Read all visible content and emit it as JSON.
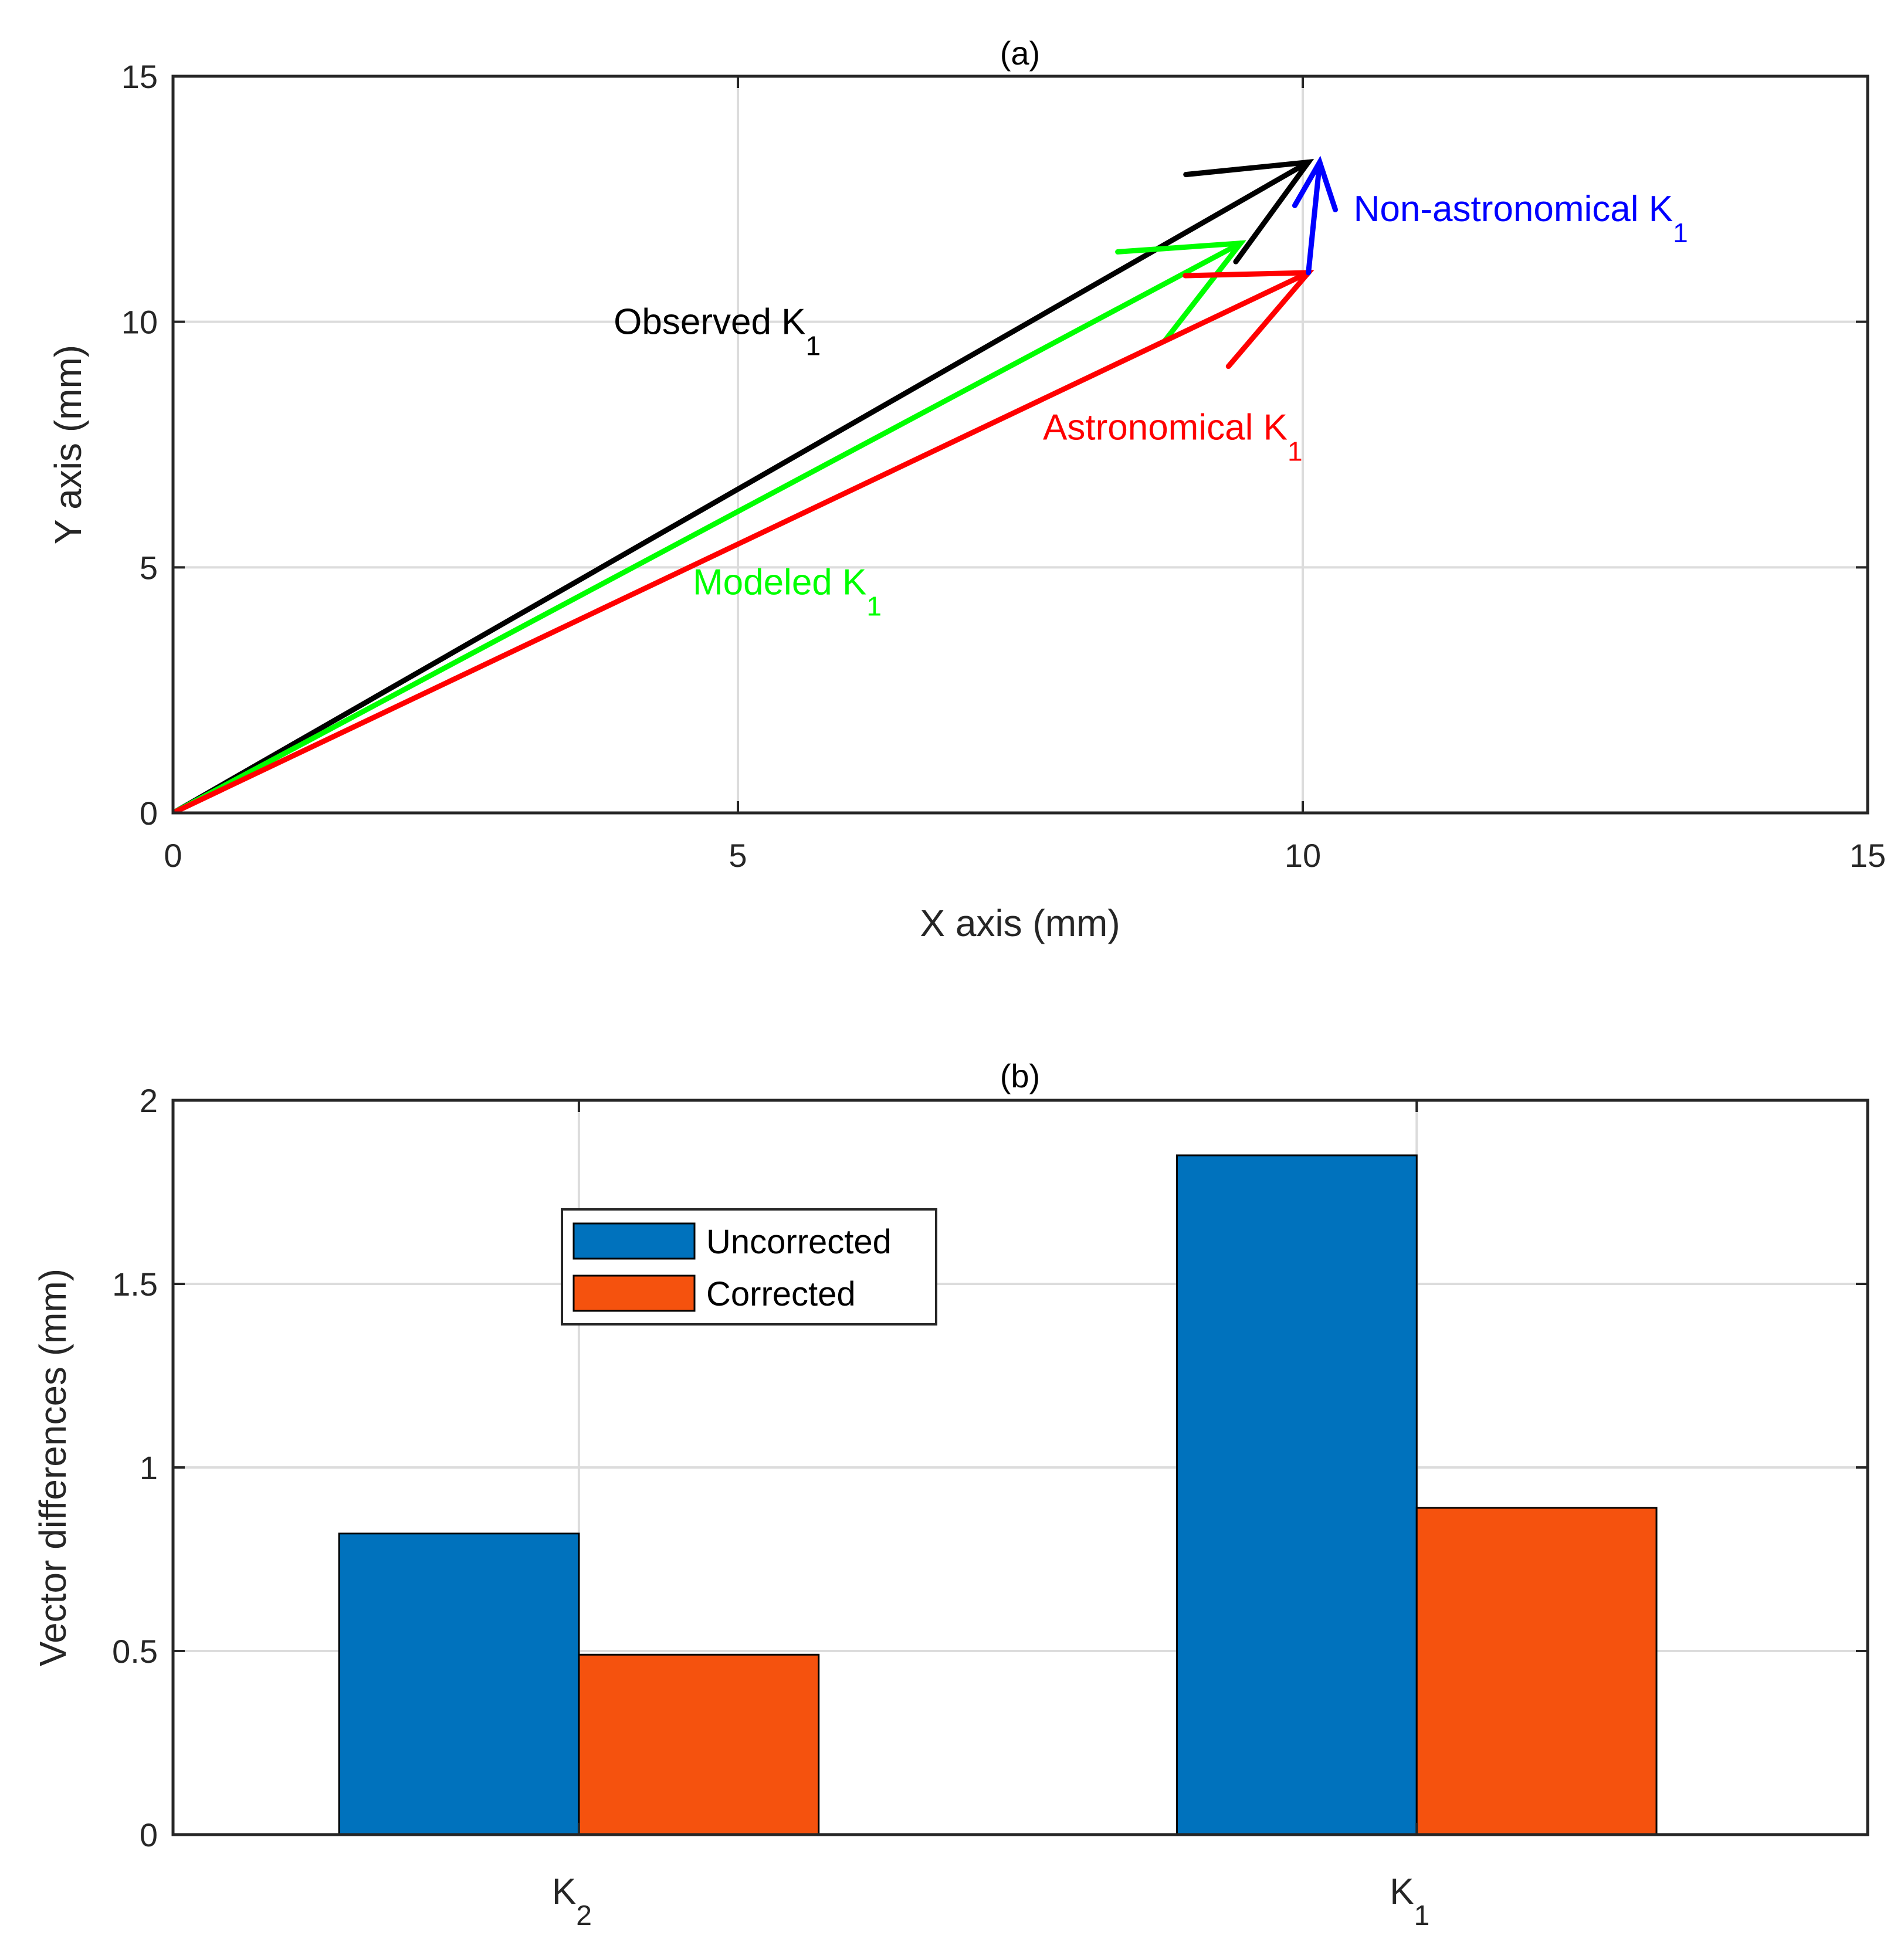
{
  "chart_data": [
    {
      "type": "vector",
      "title": "(a)",
      "xlabel": "X axis (mm)",
      "ylabel": "Y axis (mm)",
      "xlim": [
        0,
        15
      ],
      "ylim": [
        0,
        15
      ],
      "xticks": [
        "0",
        "5",
        "10",
        "15"
      ],
      "yticks": [
        "0",
        "5",
        "10",
        "15"
      ],
      "grid": true,
      "vectors": [
        {
          "name": "Observed",
          "sub": "1",
          "base": "K",
          "color": "#000000",
          "from": [
            0,
            0
          ],
          "to": [
            10.05,
            13.25
          ],
          "label_at": [
            3.9,
            9.75
          ]
        },
        {
          "name": "Modeled",
          "sub": "1",
          "base": "K",
          "color": "#00ff00",
          "from": [
            0,
            0
          ],
          "to": [
            9.45,
            11.6
          ],
          "label_at": [
            4.6,
            4.45
          ]
        },
        {
          "name": "Astronomical",
          "sub": "1",
          "base": "K",
          "color": "#ff0000",
          "from": [
            0,
            0
          ],
          "to": [
            10.05,
            11.0
          ],
          "label_at": [
            7.7,
            7.6
          ]
        },
        {
          "name": "Non-astronomical",
          "sub": "1",
          "base": "K",
          "color": "#0000ff",
          "from": [
            10.05,
            11.0
          ],
          "to": [
            10.15,
            13.25
          ],
          "label_at": [
            10.45,
            12.05
          ]
        }
      ]
    },
    {
      "type": "bar",
      "title": "(b)",
      "xlabel": "",
      "ylabel": "Vector differences (mm)",
      "ylim": [
        0,
        2
      ],
      "yticks": [
        "0",
        "0.5",
        "1",
        "1.5",
        "2"
      ],
      "grid": true,
      "categories": [
        {
          "base": "K",
          "sub": "2"
        },
        {
          "base": "K",
          "sub": "1"
        }
      ],
      "series": [
        {
          "name": "Uncorrected",
          "color": "#0072bd",
          "values": [
            0.82,
            1.85
          ]
        },
        {
          "name": "Corrected",
          "color": "#f5520e",
          "values": [
            0.49,
            0.89
          ]
        }
      ],
      "legend": {
        "position": "upper-left-center",
        "labels": [
          "Uncorrected",
          "Corrected"
        ]
      }
    }
  ]
}
